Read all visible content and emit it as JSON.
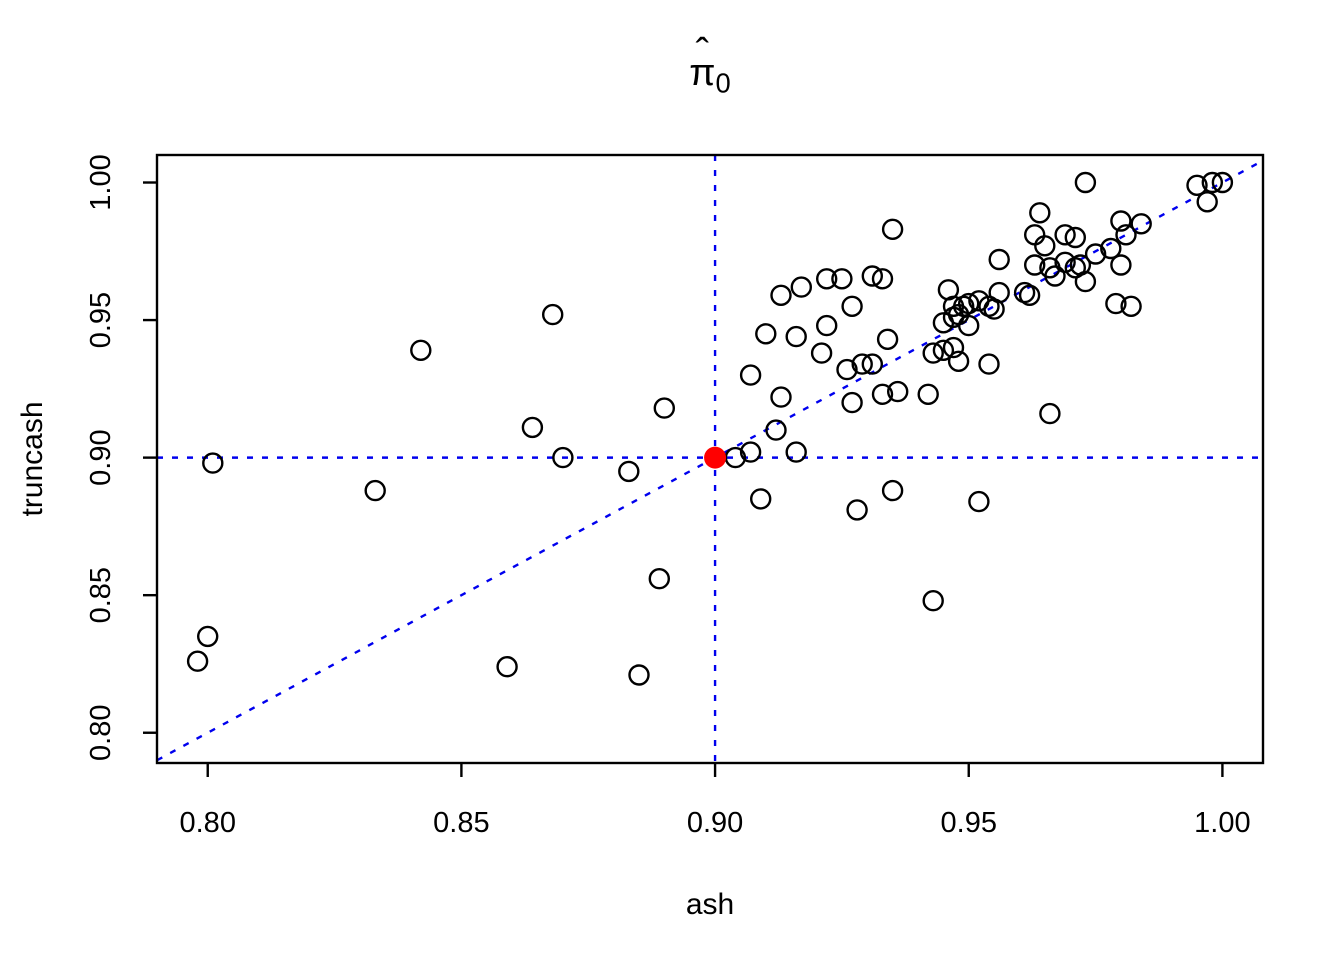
{
  "title": {
    "hat": "ˆ",
    "base": "π",
    "sub": "0"
  },
  "chart_data": {
    "type": "scatter",
    "title": "pi-hat_0",
    "xlabel": "ash",
    "ylabel": "truncash",
    "xlim": [
      0.79,
      1.008
    ],
    "ylim": [
      0.789,
      1.01
    ],
    "x_ticks": [
      0.8,
      0.85,
      0.9,
      0.95,
      1.0
    ],
    "x_tick_labels": [
      "0.80",
      "0.85",
      "0.90",
      "0.95",
      "1.00"
    ],
    "y_ticks": [
      0.8,
      0.85,
      0.9,
      0.95,
      1.0
    ],
    "y_tick_labels": [
      "0.80",
      "0.85",
      "0.90",
      "0.95",
      "1.00"
    ],
    "grid": false,
    "point_style": "open-circle",
    "point_color": "#000000",
    "reference_lines": {
      "horizontal_y": 0.9,
      "vertical_x": 0.9,
      "identity_line": true,
      "color": "#0000ee",
      "style": "dotted"
    },
    "highlight_point": {
      "x": 0.9,
      "y": 0.9,
      "color": "#ff0000",
      "style": "filled-circle"
    },
    "points": [
      [
        0.798,
        0.826
      ],
      [
        0.8,
        0.835
      ],
      [
        0.801,
        0.898
      ],
      [
        0.833,
        0.888
      ],
      [
        0.842,
        0.939
      ],
      [
        0.859,
        0.824
      ],
      [
        0.864,
        0.911
      ],
      [
        0.868,
        0.952
      ],
      [
        0.87,
        0.9
      ],
      [
        0.883,
        0.895
      ],
      [
        0.885,
        0.821
      ],
      [
        0.889,
        0.856
      ],
      [
        0.89,
        0.918
      ],
      [
        0.904,
        0.9
      ],
      [
        0.907,
        0.902
      ],
      [
        0.916,
        0.902
      ],
      [
        0.912,
        0.91
      ],
      [
        0.909,
        0.885
      ],
      [
        0.935,
        0.983
      ],
      [
        0.913,
        0.959
      ],
      [
        0.917,
        0.962
      ],
      [
        0.922,
        0.965
      ],
      [
        0.925,
        0.965
      ],
      [
        0.931,
        0.966
      ],
      [
        0.933,
        0.965
      ],
      [
        0.927,
        0.955
      ],
      [
        0.91,
        0.945
      ],
      [
        0.916,
        0.944
      ],
      [
        0.922,
        0.948
      ],
      [
        0.921,
        0.938
      ],
      [
        0.934,
        0.943
      ],
      [
        0.907,
        0.93
      ],
      [
        0.926,
        0.932
      ],
      [
        0.929,
        0.934
      ],
      [
        0.931,
        0.934
      ],
      [
        0.913,
        0.922
      ],
      [
        0.927,
        0.92
      ],
      [
        0.933,
        0.923
      ],
      [
        0.936,
        0.924
      ],
      [
        0.942,
        0.923
      ],
      [
        0.946,
        0.961
      ],
      [
        0.947,
        0.955
      ],
      [
        0.949,
        0.955
      ],
      [
        0.95,
        0.956
      ],
      [
        0.952,
        0.957
      ],
      [
        0.954,
        0.955
      ],
      [
        0.955,
        0.954
      ],
      [
        0.945,
        0.949
      ],
      [
        0.947,
        0.951
      ],
      [
        0.948,
        0.952
      ],
      [
        0.95,
        0.948
      ],
      [
        0.943,
        0.938
      ],
      [
        0.945,
        0.939
      ],
      [
        0.947,
        0.94
      ],
      [
        0.948,
        0.935
      ],
      [
        0.954,
        0.934
      ],
      [
        0.956,
        0.972
      ],
      [
        0.956,
        0.96
      ],
      [
        0.963,
        0.97
      ],
      [
        0.966,
        0.969
      ],
      [
        0.967,
        0.966
      ],
      [
        0.969,
        0.971
      ],
      [
        0.971,
        0.969
      ],
      [
        0.972,
        0.97
      ],
      [
        0.973,
        0.964
      ],
      [
        0.961,
        0.96
      ],
      [
        0.962,
        0.959
      ],
      [
        0.964,
        0.989
      ],
      [
        0.963,
        0.981
      ],
      [
        0.969,
        0.981
      ],
      [
        0.971,
        0.98
      ],
      [
        0.965,
        0.977
      ],
      [
        0.975,
        0.974
      ],
      [
        0.978,
        0.976
      ],
      [
        0.981,
        0.981
      ],
      [
        0.98,
        0.986
      ],
      [
        0.984,
        0.985
      ],
      [
        0.98,
        0.97
      ],
      [
        0.979,
        0.956
      ],
      [
        0.982,
        0.955
      ],
      [
        0.973,
        1.0
      ],
      [
        0.995,
        0.999
      ],
      [
        0.998,
        1.0
      ],
      [
        1.0,
        1.0
      ],
      [
        0.997,
        0.993
      ],
      [
        0.966,
        0.916
      ],
      [
        0.935,
        0.888
      ],
      [
        0.928,
        0.881
      ],
      [
        0.952,
        0.884
      ],
      [
        0.943,
        0.848
      ]
    ]
  }
}
